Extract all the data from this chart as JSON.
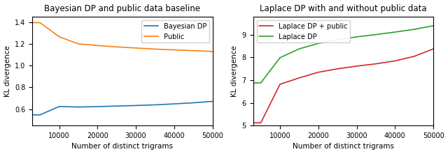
{
  "left": {
    "title": "Bayesian DP and public data baseline",
    "xlabel": "Number of distinct trigrams",
    "ylabel": "KL divergence",
    "x": [
      3000,
      5000,
      10000,
      15000,
      20000,
      25000,
      30000,
      35000,
      40000,
      45000,
      50000
    ],
    "bayesian_dp": [
      0.548,
      0.548,
      0.625,
      0.62,
      0.624,
      0.629,
      0.634,
      0.64,
      0.649,
      0.659,
      0.672
    ],
    "public": [
      1.395,
      1.395,
      1.265,
      1.2,
      1.185,
      1.172,
      1.162,
      1.152,
      1.145,
      1.138,
      1.13
    ],
    "bayesian_color": "#1f77b4",
    "public_color": "#ff7f0e",
    "xlim": [
      3000,
      50000
    ],
    "ylim": [
      0.45,
      1.45
    ],
    "yticks": [
      0.6,
      0.8,
      1.0,
      1.2,
      1.4
    ],
    "xticks": [
      10000,
      20000,
      30000,
      40000,
      50000
    ],
    "legend_labels": [
      "Bayesian DP",
      "Public"
    ]
  },
  "right": {
    "title": "Laplace DP with and without public data",
    "xlabel": "Number of distinct trigrams",
    "ylabel": "KL divergence",
    "x": [
      3000,
      5000,
      10000,
      15000,
      20000,
      25000,
      30000,
      35000,
      40000,
      45000,
      50000
    ],
    "laplace_public": [
      5.12,
      5.12,
      6.82,
      7.1,
      7.35,
      7.5,
      7.62,
      7.72,
      7.85,
      8.05,
      8.38
    ],
    "laplace_dp": [
      6.88,
      6.88,
      7.99,
      8.38,
      8.62,
      8.78,
      8.91,
      9.01,
      9.12,
      9.24,
      9.4
    ],
    "laplace_public_color": "#d62728",
    "laplace_dp_color": "#2ca02c",
    "xlim": [
      3000,
      50000
    ],
    "ylim": [
      5.0,
      9.8
    ],
    "yticks": [
      5,
      6,
      7,
      8,
      9
    ],
    "xticks": [
      10000,
      20000,
      30000,
      40000,
      50000
    ],
    "legend_labels": [
      "Laplace DP + public",
      "Laplace DP"
    ]
  },
  "fig_width": 6.4,
  "fig_height": 2.21,
  "dpi": 100
}
